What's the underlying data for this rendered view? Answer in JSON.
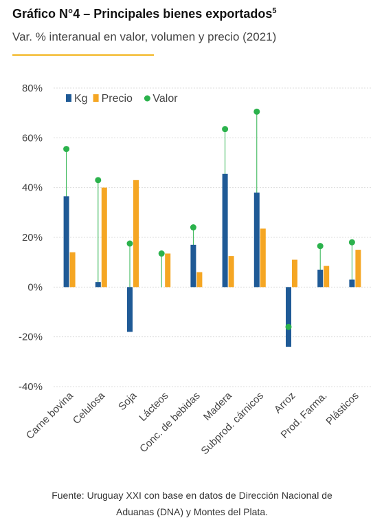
{
  "header": {
    "title": "Gráfico N°4 – Principales bienes exportados",
    "title_sup": "5",
    "subtitle": "Var. % interanual en valor, volumen y precio (2021)"
  },
  "source": {
    "line1": "Fuente: Uruguay XXI con base en datos de Dirección Nacional de",
    "line2": "Aduanas (DNA) y Montes del Plata."
  },
  "colors": {
    "kg": "#1f5a96",
    "precio": "#f5a623",
    "valor": "#2bb24c",
    "accent": "#f2b51f"
  },
  "chart_data": {
    "type": "bar",
    "categories": [
      "Carne bovina",
      "Celulosa",
      "Soja",
      "Lácteos",
      "Conc. de bebidas",
      "Madera",
      "Subprod. cárnicos",
      "Arroz",
      "Prod. Farma.",
      "Plásticos"
    ],
    "series": [
      {
        "name": "Kg",
        "type": "bar",
        "values": [
          36.5,
          2,
          -18,
          0,
          17,
          45.5,
          38,
          -24,
          7,
          3
        ]
      },
      {
        "name": "Precio",
        "type": "bar",
        "values": [
          14,
          40,
          43,
          13.5,
          6,
          12.5,
          23.5,
          11,
          8.5,
          15
        ]
      },
      {
        "name": "Valor",
        "type": "scatter",
        "values": [
          55.5,
          43,
          17.5,
          13.5,
          24,
          63.5,
          70.5,
          -16,
          16.5,
          18
        ]
      }
    ],
    "ylim": [
      -40,
      80
    ],
    "yticks": [
      -40,
      -20,
      0,
      20,
      40,
      60,
      80
    ],
    "ytick_labels": [
      "-40%",
      "-20%",
      "0%",
      "20%",
      "40%",
      "60%",
      "80%"
    ],
    "legend_position": "top-left",
    "grid": true
  }
}
